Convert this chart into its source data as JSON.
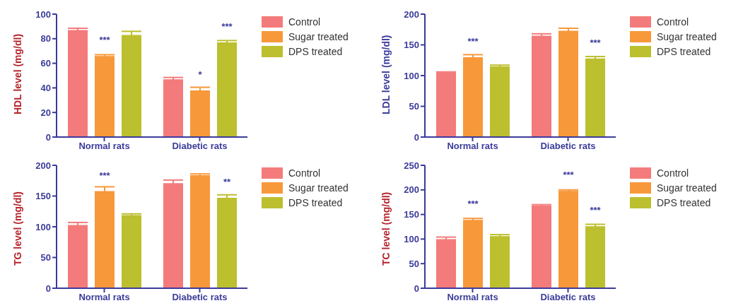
{
  "chart_data": [
    {
      "type": "bar",
      "ylabel": "HDL level (mg/dl)",
      "categories": [
        "Normal rats",
        "Diabetic rats"
      ],
      "ylim": [
        0,
        100
      ],
      "yticks": [
        0,
        20,
        40,
        60,
        80,
        100
      ],
      "legend": "top right",
      "series": [
        {
          "name": "Control",
          "color": "#f47b7b",
          "values": [
            87,
            47
          ],
          "errors": [
            1.5,
            1.5
          ]
        },
        {
          "name": "Sugar treated",
          "color": "#f7983a",
          "values": [
            66,
            38
          ],
          "errors": [
            1,
            2.5
          ],
          "value_labels": [
            "***",
            "*"
          ]
        },
        {
          "name": "DPS treated",
          "color": "#bcbf2e",
          "values": [
            83,
            77
          ],
          "errors": [
            3,
            1.5
          ],
          "value_labels": [
            null,
            "***"
          ]
        }
      ]
    },
    {
      "type": "bar",
      "ylabel": "LDL level (mg/dl)",
      "categories": [
        "Normal rats",
        "Diabetic rats"
      ],
      "ylim": [
        0,
        200
      ],
      "yticks": [
        0,
        50,
        100,
        150,
        200
      ],
      "legend": "top right",
      "series": [
        {
          "name": "Control",
          "color": "#f47b7b",
          "values": [
            105,
            165
          ],
          "errors": [
            1,
            3
          ]
        },
        {
          "name": "Sugar treated",
          "color": "#f7983a",
          "values": [
            130,
            173
          ],
          "errors": [
            4,
            4
          ],
          "value_labels": [
            "***",
            null
          ]
        },
        {
          "name": "DPS treated",
          "color": "#bcbf2e",
          "values": [
            115,
            128
          ],
          "errors": [
            2,
            3
          ],
          "value_labels": [
            null,
            "***"
          ]
        }
      ]
    },
    {
      "type": "bar",
      "ylabel": "TG level (mg/dl)",
      "categories": [
        "Normal rats",
        "Diabetic rats"
      ],
      "ylim": [
        0,
        200
      ],
      "yticks": [
        0,
        50,
        100,
        150,
        200
      ],
      "legend": "top right",
      "series": [
        {
          "name": "Control",
          "color": "#f47b7b",
          "values": [
            103,
            171
          ],
          "errors": [
            4,
            5
          ]
        },
        {
          "name": "Sugar treated",
          "color": "#f7983a",
          "values": [
            158,
            184
          ],
          "errors": [
            7,
            2
          ],
          "value_labels": [
            "***",
            null
          ]
        },
        {
          "name": "DPS treated",
          "color": "#bcbf2e",
          "values": [
            119,
            147
          ],
          "errors": [
            2,
            5
          ],
          "value_labels": [
            null,
            "**"
          ]
        }
      ]
    },
    {
      "type": "bar",
      "ylabel": "TC level (mg/dl)",
      "categories": [
        "Normal rats",
        "Diabetic rats"
      ],
      "ylim": [
        0,
        250
      ],
      "yticks": [
        0,
        50,
        100,
        150,
        200,
        250
      ],
      "legend": "top right",
      "series": [
        {
          "name": "Control",
          "color": "#f47b7b",
          "values": [
            100,
            168
          ],
          "errors": [
            4,
            2
          ]
        },
        {
          "name": "Sugar treated",
          "color": "#f7983a",
          "values": [
            139,
            198
          ],
          "errors": [
            3,
            2
          ],
          "value_labels": [
            "***",
            "***"
          ]
        },
        {
          "name": "DPS treated",
          "color": "#bcbf2e",
          "values": [
            106,
            126
          ],
          "errors": [
            3,
            4
          ],
          "value_labels": [
            null,
            "***"
          ]
        }
      ]
    }
  ]
}
